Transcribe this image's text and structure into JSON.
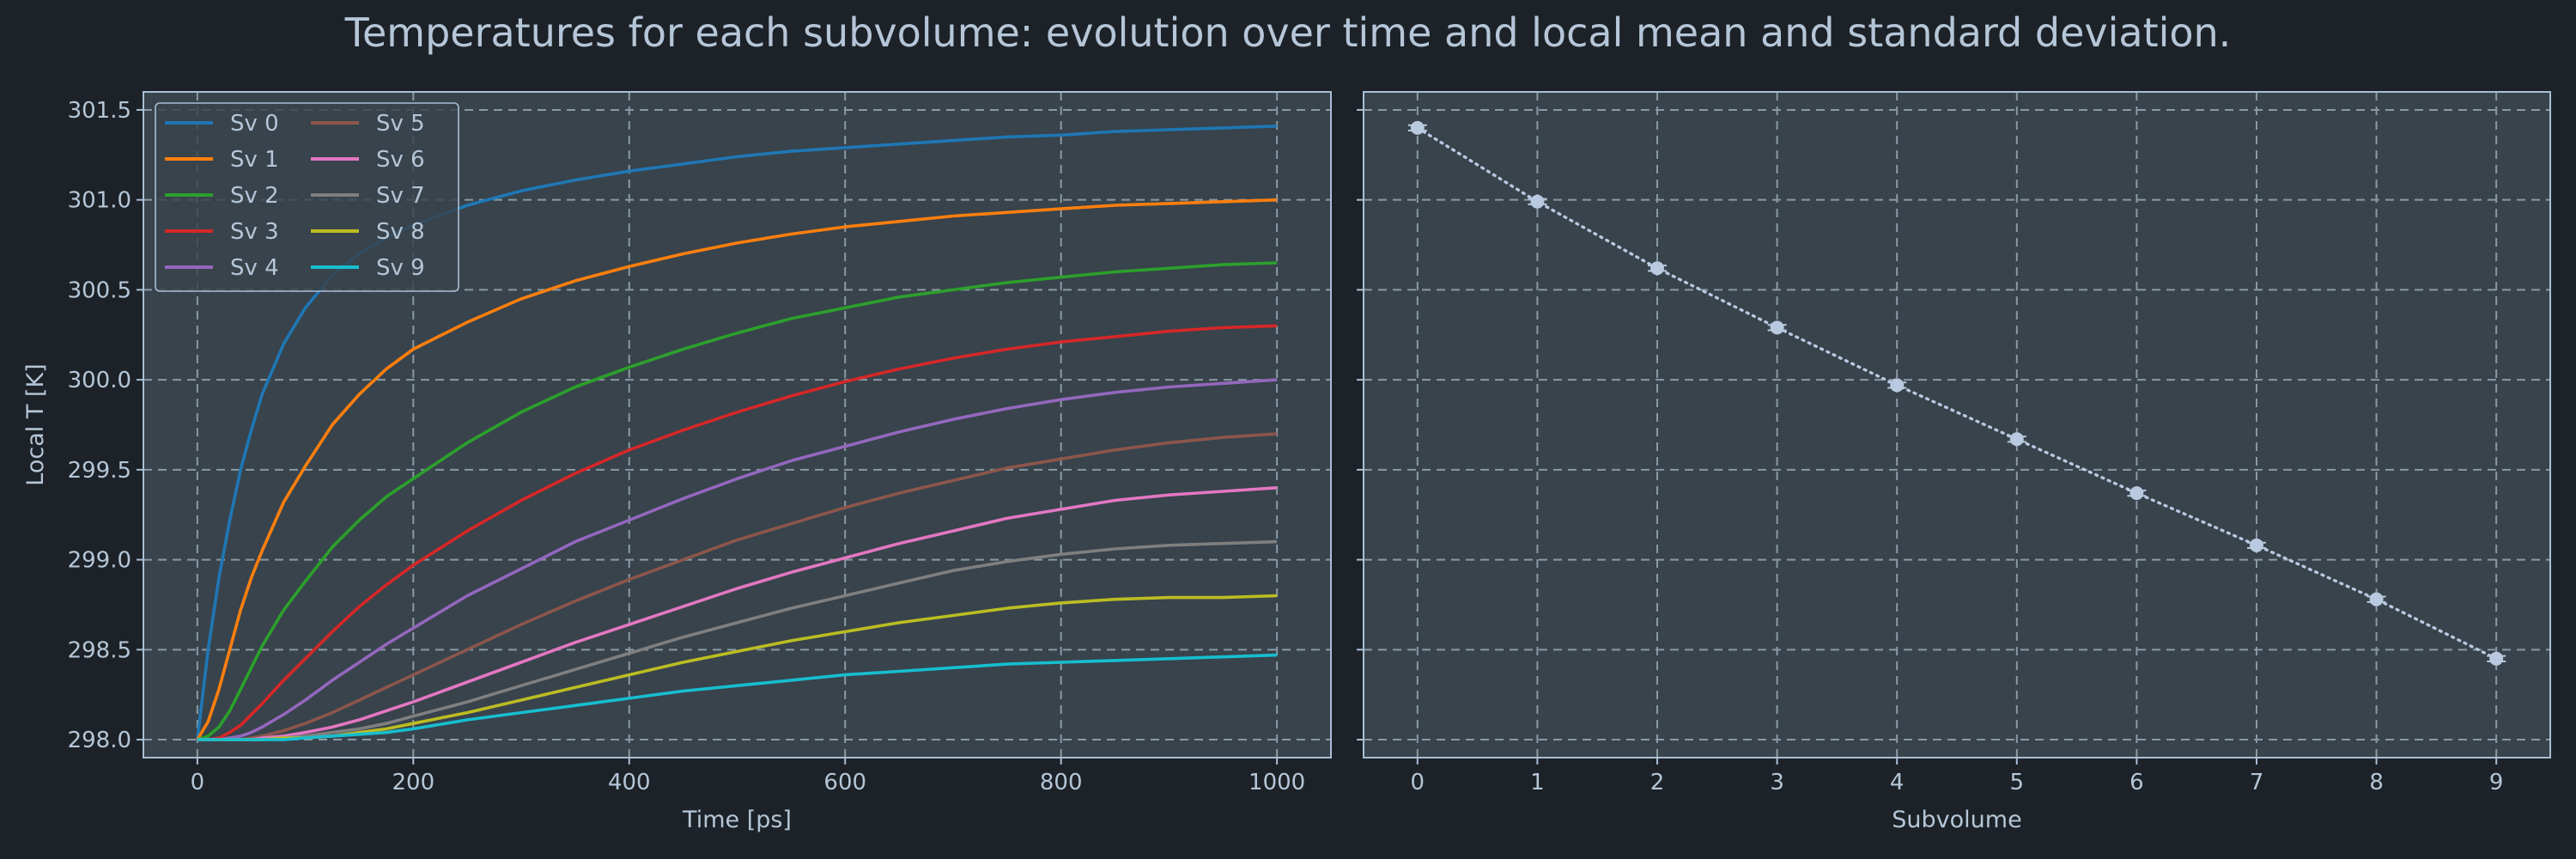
{
  "figure": {
    "title": "Temperatures for each subvolume: evolution over time and local mean and standard deviation.",
    "colors": {
      "background": "#1c2227",
      "axes_face": "#38434c",
      "axes_edge": "#a9bfd6",
      "grid": "#8a9aa4",
      "text": "#b5c6d8",
      "marker": "#b8c9e0"
    }
  },
  "chart_data": [
    {
      "type": "line",
      "title": "",
      "xlabel": "Time [ps]",
      "ylabel": "Local T [K]",
      "xlim": [
        -50,
        1050
      ],
      "ylim": [
        297.9,
        301.6
      ],
      "xticks": [
        "0",
        "200",
        "400",
        "600",
        "800",
        "1000"
      ],
      "yticks": [
        "298.0",
        "298.5",
        "299.0",
        "299.5",
        "300.0",
        "300.5",
        "301.0",
        "301.5"
      ],
      "grid": true,
      "legend": {
        "placement": "upper-left",
        "columns": 2
      },
      "x": [
        0,
        10,
        20,
        30,
        40,
        50,
        60,
        80,
        100,
        125,
        150,
        175,
        200,
        250,
        300,
        350,
        400,
        450,
        500,
        550,
        600,
        650,
        700,
        750,
        800,
        850,
        900,
        950,
        1000
      ],
      "series": [
        {
          "name": "Sv 0",
          "color": "#1f77b4",
          "values": [
            298.0,
            298.5,
            298.9,
            299.22,
            299.5,
            299.72,
            299.92,
            300.2,
            300.4,
            300.58,
            300.7,
            300.79,
            300.86,
            300.97,
            301.05,
            301.11,
            301.16,
            301.2,
            301.24,
            301.27,
            301.29,
            301.31,
            301.33,
            301.35,
            301.36,
            301.38,
            301.39,
            301.4,
            301.41
          ]
        },
        {
          "name": "Sv 1",
          "color": "#ff7f0e",
          "values": [
            298.0,
            298.1,
            298.28,
            298.5,
            298.72,
            298.9,
            299.05,
            299.32,
            299.52,
            299.75,
            299.92,
            300.06,
            300.17,
            300.32,
            300.45,
            300.55,
            300.63,
            300.7,
            300.76,
            300.81,
            300.85,
            300.88,
            300.91,
            300.93,
            300.95,
            300.97,
            300.98,
            300.99,
            301.0
          ]
        },
        {
          "name": "Sv 2",
          "color": "#2ca02c",
          "values": [
            298.0,
            298.02,
            298.07,
            298.16,
            298.28,
            298.4,
            298.52,
            298.72,
            298.88,
            299.07,
            299.22,
            299.35,
            299.45,
            299.65,
            299.82,
            299.96,
            300.07,
            300.17,
            300.26,
            300.34,
            300.4,
            300.46,
            300.5,
            300.54,
            300.57,
            300.6,
            300.62,
            300.64,
            300.65
          ]
        },
        {
          "name": "Sv 3",
          "color": "#d62728",
          "values": [
            298.0,
            298.0,
            298.01,
            298.04,
            298.08,
            298.14,
            298.2,
            298.33,
            298.45,
            298.6,
            298.74,
            298.86,
            298.97,
            299.16,
            299.33,
            299.48,
            299.61,
            299.72,
            299.82,
            299.91,
            299.99,
            300.06,
            300.12,
            300.17,
            300.21,
            300.24,
            300.27,
            300.29,
            300.3
          ]
        },
        {
          "name": "Sv 4",
          "color": "#9467bd",
          "values": [
            298.0,
            298.0,
            298.0,
            298.01,
            298.02,
            298.04,
            298.07,
            298.14,
            298.22,
            298.33,
            298.43,
            298.53,
            298.62,
            298.8,
            298.95,
            299.1,
            299.22,
            299.34,
            299.45,
            299.55,
            299.63,
            299.71,
            299.78,
            299.84,
            299.89,
            299.93,
            299.96,
            299.98,
            300.0
          ]
        },
        {
          "name": "Sv 5",
          "color": "#8c564b",
          "values": [
            298.0,
            298.0,
            298.0,
            298.0,
            298.0,
            298.01,
            298.02,
            298.05,
            298.09,
            298.15,
            298.22,
            298.29,
            298.36,
            298.5,
            298.64,
            298.77,
            298.89,
            299.0,
            299.11,
            299.2,
            299.29,
            299.37,
            299.44,
            299.51,
            299.56,
            299.61,
            299.65,
            299.68,
            299.7
          ]
        },
        {
          "name": "Sv 6",
          "color": "#e377c2",
          "values": [
            298.0,
            298.0,
            298.0,
            298.0,
            298.0,
            298.0,
            298.01,
            298.02,
            298.04,
            298.07,
            298.11,
            298.16,
            298.21,
            298.32,
            298.43,
            298.54,
            298.64,
            298.74,
            298.84,
            298.93,
            299.01,
            299.09,
            299.16,
            299.23,
            299.28,
            299.33,
            299.36,
            299.38,
            299.4
          ]
        },
        {
          "name": "Sv 7",
          "color": "#7f7f7f",
          "values": [
            298.0,
            298.0,
            298.0,
            298.0,
            298.0,
            298.0,
            298.0,
            298.01,
            298.02,
            298.04,
            298.06,
            298.09,
            298.13,
            298.21,
            298.3,
            298.39,
            298.48,
            298.57,
            298.65,
            298.73,
            298.8,
            298.87,
            298.94,
            298.99,
            299.03,
            299.06,
            299.08,
            299.09,
            299.1
          ]
        },
        {
          "name": "Sv 8",
          "color": "#bcbd22",
          "values": [
            298.0,
            298.0,
            298.0,
            298.0,
            298.0,
            298.0,
            298.0,
            298.01,
            298.01,
            298.02,
            298.04,
            298.06,
            298.09,
            298.15,
            298.22,
            298.29,
            298.36,
            298.43,
            298.49,
            298.55,
            298.6,
            298.65,
            298.69,
            298.73,
            298.76,
            298.78,
            298.79,
            298.79,
            298.8
          ]
        },
        {
          "name": "Sv 9",
          "color": "#17becf",
          "values": [
            298.0,
            298.0,
            298.0,
            298.0,
            298.0,
            298.0,
            298.0,
            298.0,
            298.01,
            298.02,
            298.03,
            298.04,
            298.06,
            298.11,
            298.15,
            298.19,
            298.23,
            298.27,
            298.3,
            298.33,
            298.36,
            298.38,
            298.4,
            298.42,
            298.43,
            298.44,
            298.45,
            298.46,
            298.47
          ]
        }
      ]
    },
    {
      "type": "scatter",
      "title": "",
      "xlabel": "Subvolume",
      "ylabel": "",
      "xlim": [
        -0.45,
        9.45
      ],
      "ylim": [
        297.9,
        301.6
      ],
      "xticks": [
        "0",
        "1",
        "2",
        "3",
        "4",
        "5",
        "6",
        "7",
        "8",
        "9"
      ],
      "grid": true,
      "line_style": "dotted",
      "x": [
        0,
        1,
        2,
        3,
        4,
        5,
        6,
        7,
        8,
        9
      ],
      "mean": [
        301.4,
        300.99,
        300.62,
        300.29,
        299.97,
        299.67,
        299.37,
        299.08,
        298.78,
        298.45
      ],
      "std": [
        0.015,
        0.015,
        0.015,
        0.015,
        0.015,
        0.015,
        0.015,
        0.015,
        0.015,
        0.015
      ]
    }
  ]
}
